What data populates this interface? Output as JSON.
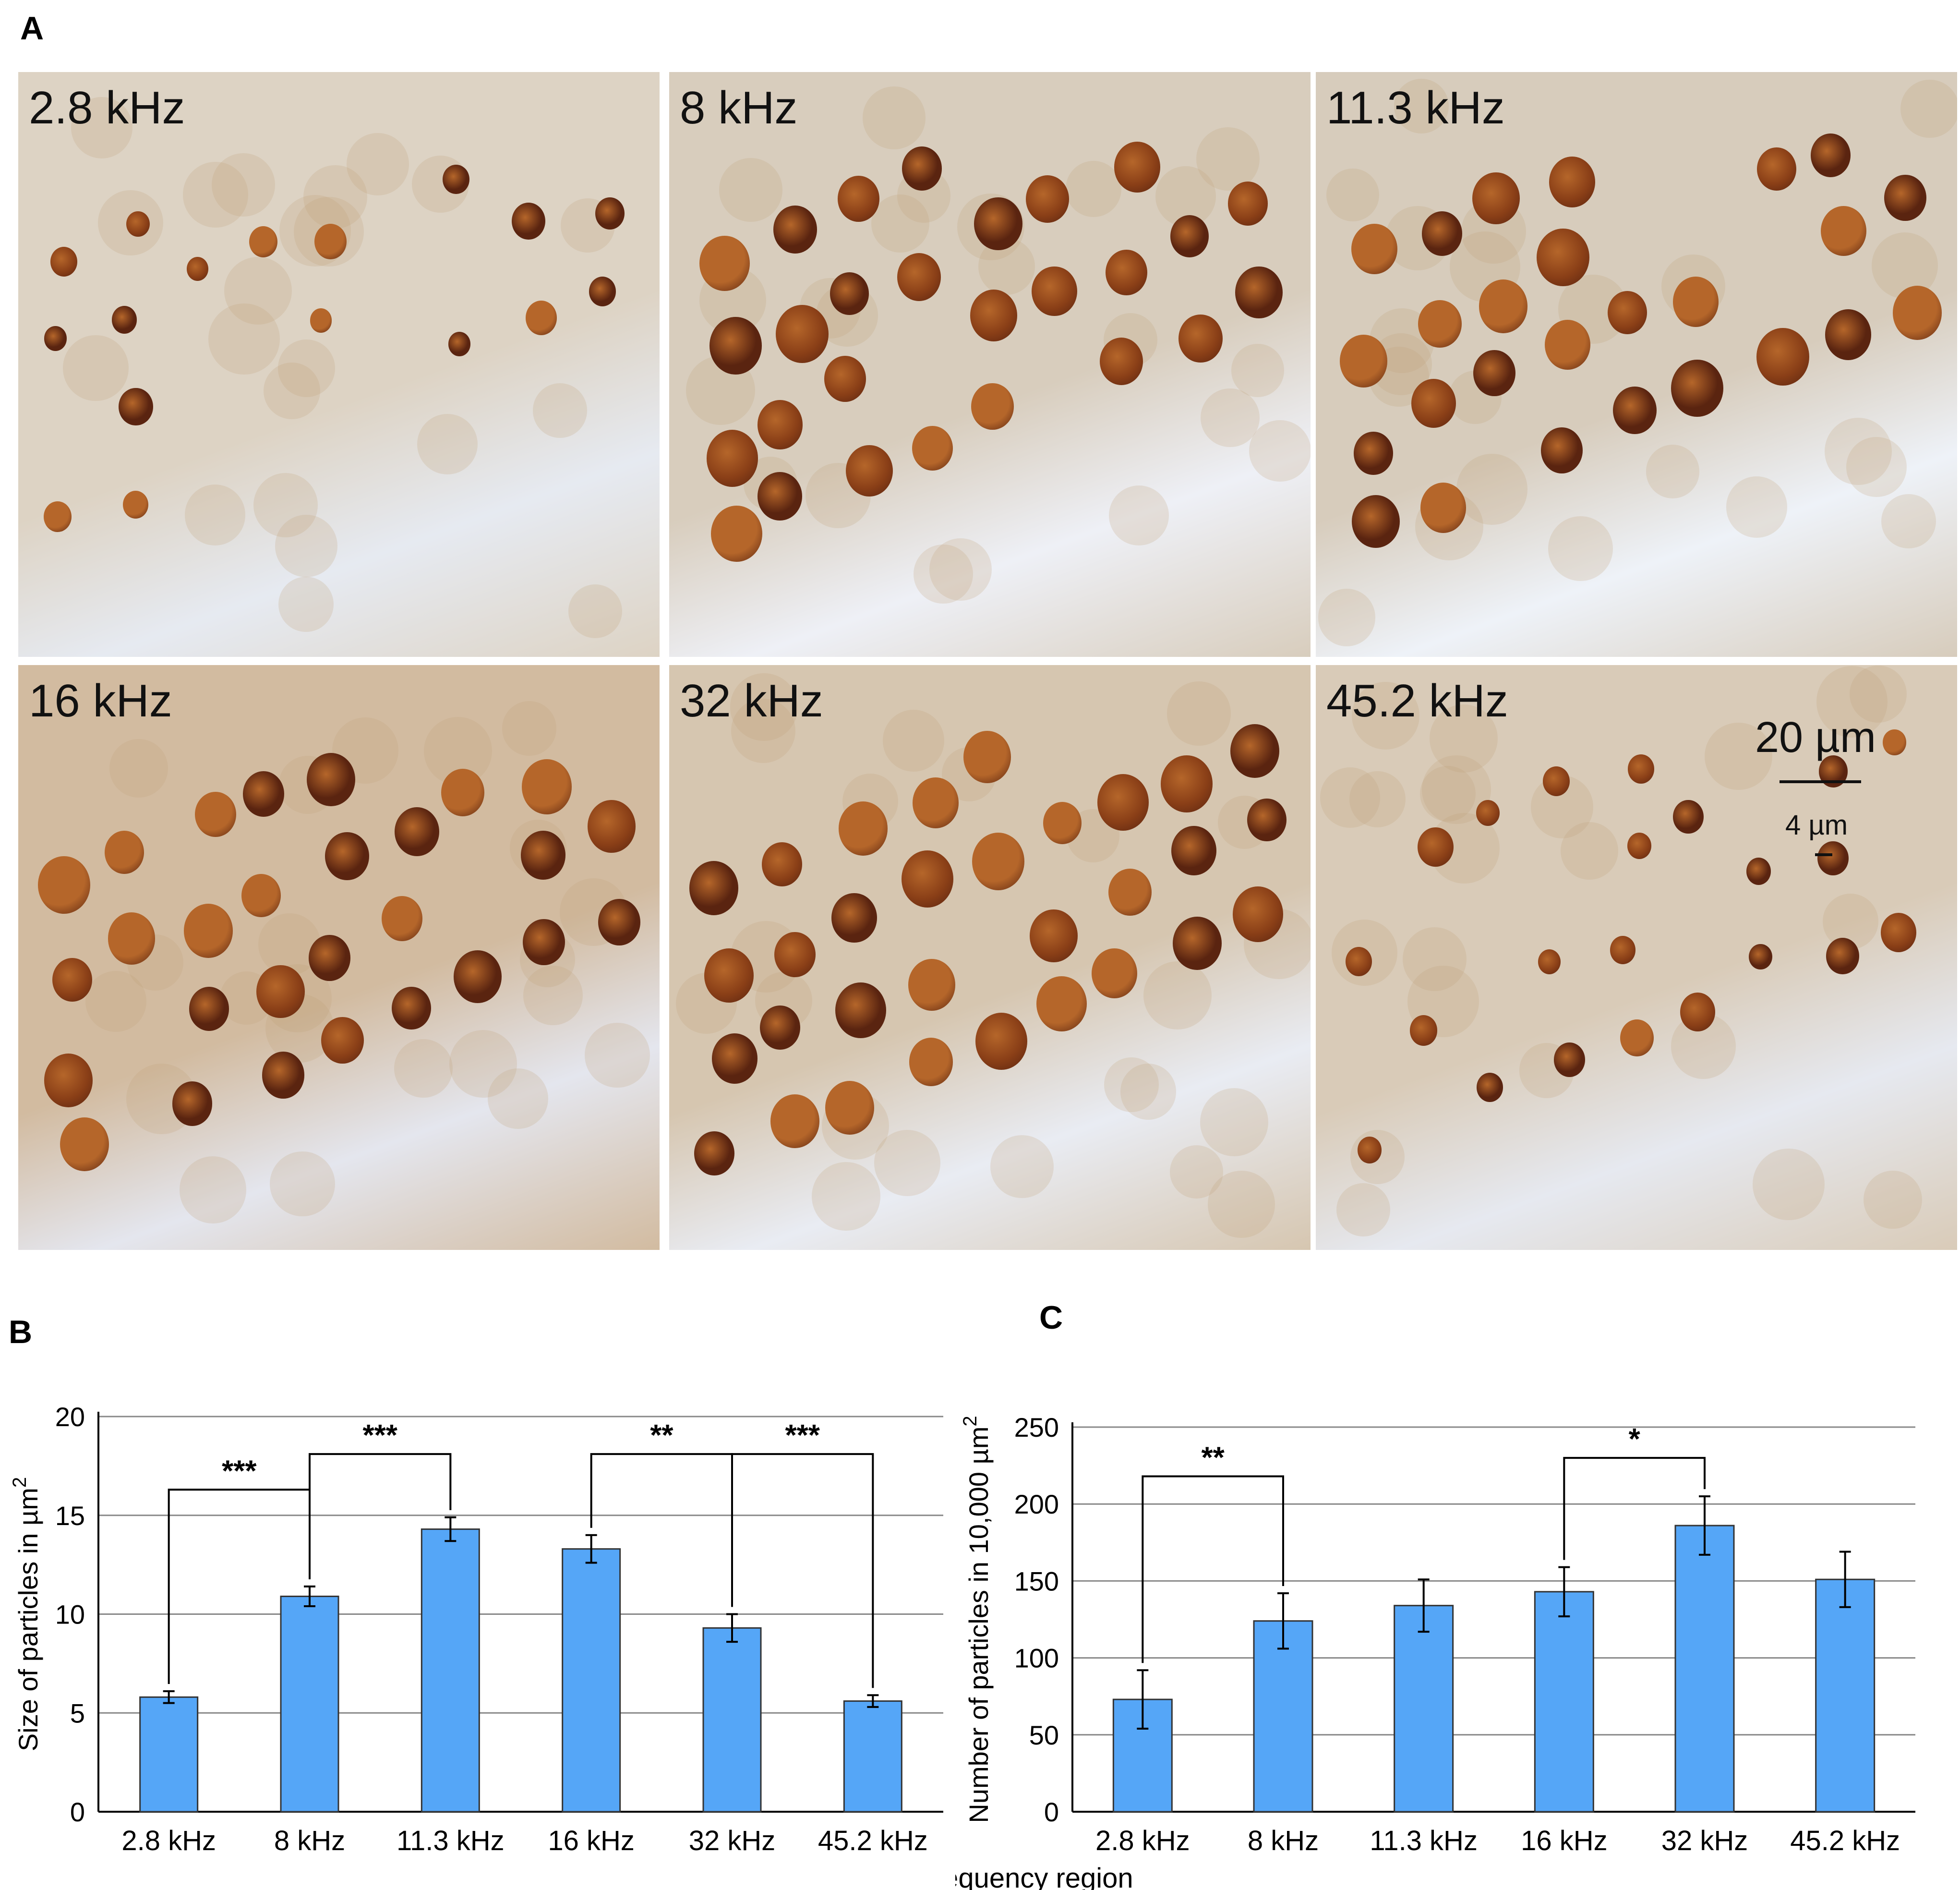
{
  "panel_labels": {
    "a": "A",
    "b": "B",
    "c": "C"
  },
  "micrographs": [
    {
      "label": "2.8 kHz",
      "bg": "#ddd3c4",
      "lower": "#e6eaf1"
    },
    {
      "label": "8 kHz",
      "bg": "#d8cdbd",
      "lower": "#eef0f6"
    },
    {
      "label": "11.3 kHz",
      "bg": "#d7ccbc",
      "lower": "#eef2f8"
    },
    {
      "label": "16 kHz",
      "bg": "#d2bba0",
      "lower": "#e4e6ee"
    },
    {
      "label": "32 kHz",
      "bg": "#d6c6b0",
      "lower": "#e9ecf3"
    },
    {
      "label": "45.2 kHz",
      "bg": "#d9cbb8",
      "lower": "#e6e9f0"
    }
  ],
  "scale": {
    "big": "20 µm",
    "small": "4 µm"
  },
  "colors": {
    "bar": "#55a6f7",
    "cell_dark": "#5a2410",
    "cell_mid": "#8a3f17",
    "cell_light": "#b5662a"
  },
  "chart_data": [
    {
      "type": "bar",
      "categories": [
        "2.8 kHz",
        "8 kHz",
        "11.3 kHz",
        "16 kHz",
        "32 kHz",
        "45.2 kHz"
      ],
      "values": [
        5.8,
        10.9,
        14.3,
        13.3,
        9.3,
        5.6
      ],
      "errors": [
        0.3,
        0.5,
        0.6,
        0.7,
        0.7,
        0.3
      ],
      "ylabel": "Size of particles in µm",
      "ylabel_sup": "2",
      "yticks": [
        0,
        5,
        10,
        15,
        20
      ],
      "ylim": [
        0,
        20
      ],
      "grid": true,
      "significance": [
        {
          "from": 0,
          "to": 1,
          "label": "***",
          "level": 16.3
        },
        {
          "from": 1,
          "to": 2,
          "label": "***",
          "level": 18.1
        },
        {
          "from": 3,
          "to": 4,
          "label": "**",
          "level": 18.1
        },
        {
          "from": 4,
          "to": 5,
          "label": "***",
          "level": 18.1
        }
      ]
    },
    {
      "type": "bar",
      "categories": [
        "2.8 kHz",
        "8 kHz",
        "11.3 kHz",
        "16 kHz",
        "32 kHz",
        "45.2 kHz"
      ],
      "values": [
        73,
        124,
        134,
        143,
        186,
        151
      ],
      "errors": [
        19,
        18,
        17,
        16,
        19,
        18
      ],
      "xlabel": "Frequency region",
      "ylabel": "Number of particles in 10,000 µm",
      "ylabel_sup": "2",
      "yticks": [
        0,
        50,
        100,
        150,
        200,
        250
      ],
      "ylim": [
        0,
        250
      ],
      "grid": true,
      "significance": [
        {
          "from": 0,
          "to": 1,
          "label": "**",
          "level": 218
        },
        {
          "from": 3,
          "to": 4,
          "label": "*",
          "level": 230
        }
      ]
    }
  ]
}
